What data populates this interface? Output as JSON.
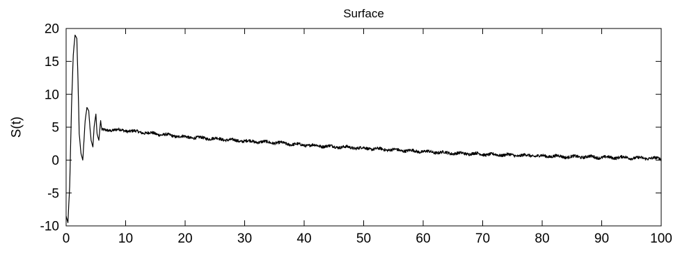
{
  "chart_data": {
    "type": "line",
    "title": "Surface",
    "xlabel": "",
    "ylabel": "S(t)",
    "xlim": [
      0,
      100
    ],
    "ylim": [
      -10,
      20
    ],
    "xticks": [
      0,
      10,
      20,
      30,
      40,
      50,
      60,
      70,
      80,
      90,
      100
    ],
    "yticks": [
      -10,
      -5,
      0,
      5,
      10,
      15,
      20
    ],
    "grid": false,
    "line_color": "#000000",
    "series": [
      {
        "x": [
          0,
          0.3,
          0.6,
          0.9,
          1.2,
          1.5,
          1.8,
          2.0,
          2.2,
          2.5,
          2.8,
          3.0,
          3.2,
          3.5,
          3.8,
          4.0,
          4.2,
          4.5,
          4.7,
          5.0,
          5.2,
          5.5,
          5.8,
          6.0,
          8,
          10,
          12,
          14,
          16,
          18,
          20,
          22,
          24,
          26,
          28,
          30,
          32,
          34,
          36,
          38,
          40,
          42,
          44,
          46,
          48,
          50,
          52,
          54,
          56,
          58,
          60,
          62,
          64,
          66,
          68,
          70,
          72,
          74,
          76,
          78,
          80,
          82,
          84,
          86,
          88,
          90,
          92,
          94,
          96,
          98,
          100
        ],
        "y": [
          -8.5,
          -9.5,
          -4,
          8,
          16,
          19,
          18.5,
          12,
          4,
          1,
          0,
          3,
          6,
          8,
          7.5,
          5,
          3,
          2,
          5,
          7,
          4,
          3,
          6,
          4.5,
          4.6,
          4.5,
          4.3,
          4.1,
          3.9,
          3.7,
          3.5,
          3.4,
          3.3,
          3.2,
          3.0,
          2.9,
          2.8,
          2.7,
          2.6,
          2.4,
          2.3,
          2.2,
          2.1,
          2.0,
          1.9,
          1.8,
          1.7,
          1.6,
          1.5,
          1.4,
          1.3,
          1.2,
          1.1,
          1.0,
          1.0,
          0.9,
          0.8,
          0.8,
          0.7,
          0.7,
          0.6,
          0.6,
          0.5,
          0.5,
          0.5,
          0.4,
          0.4,
          0.4,
          0.3,
          0.3,
          0.2
        ]
      }
    ]
  }
}
